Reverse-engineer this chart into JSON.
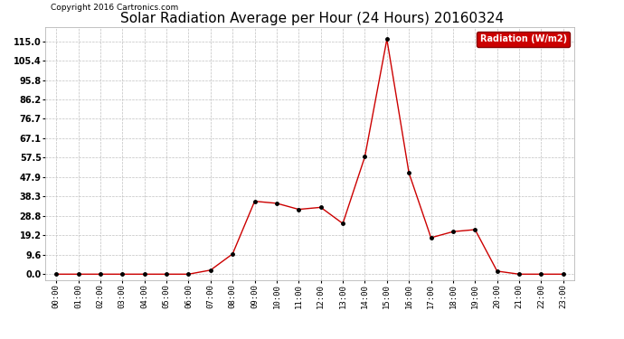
{
  "title": "Solar Radiation Average per Hour (24 Hours) 20160324",
  "copyright": "Copyright 2016 Cartronics.com",
  "legend_label": "Radiation (W/m2)",
  "hours": [
    "00:00",
    "01:00",
    "02:00",
    "03:00",
    "04:00",
    "05:00",
    "06:00",
    "07:00",
    "08:00",
    "09:00",
    "10:00",
    "11:00",
    "12:00",
    "13:00",
    "14:00",
    "15:00",
    "16:00",
    "17:00",
    "18:00",
    "19:00",
    "20:00",
    "21:00",
    "22:00",
    "23:00"
  ],
  "values": [
    0.0,
    0.0,
    0.0,
    0.0,
    0.0,
    0.0,
    0.0,
    2.0,
    10.0,
    36.0,
    35.0,
    32.0,
    33.0,
    25.0,
    58.0,
    116.0,
    50.0,
    18.0,
    21.0,
    22.0,
    1.5,
    0.0,
    0.0,
    0.0
  ],
  "line_color": "#cc0000",
  "marker_color": "#000000",
  "bg_color": "#ffffff",
  "grid_color": "#c0c0c0",
  "yticks": [
    0.0,
    9.6,
    19.2,
    28.8,
    38.3,
    47.9,
    57.5,
    67.1,
    76.7,
    86.2,
    95.8,
    105.4,
    115.0
  ],
  "ylim": [
    -3,
    122
  ],
  "title_fontsize": 11,
  "legend_bg": "#cc0000",
  "legend_text_color": "#ffffff"
}
